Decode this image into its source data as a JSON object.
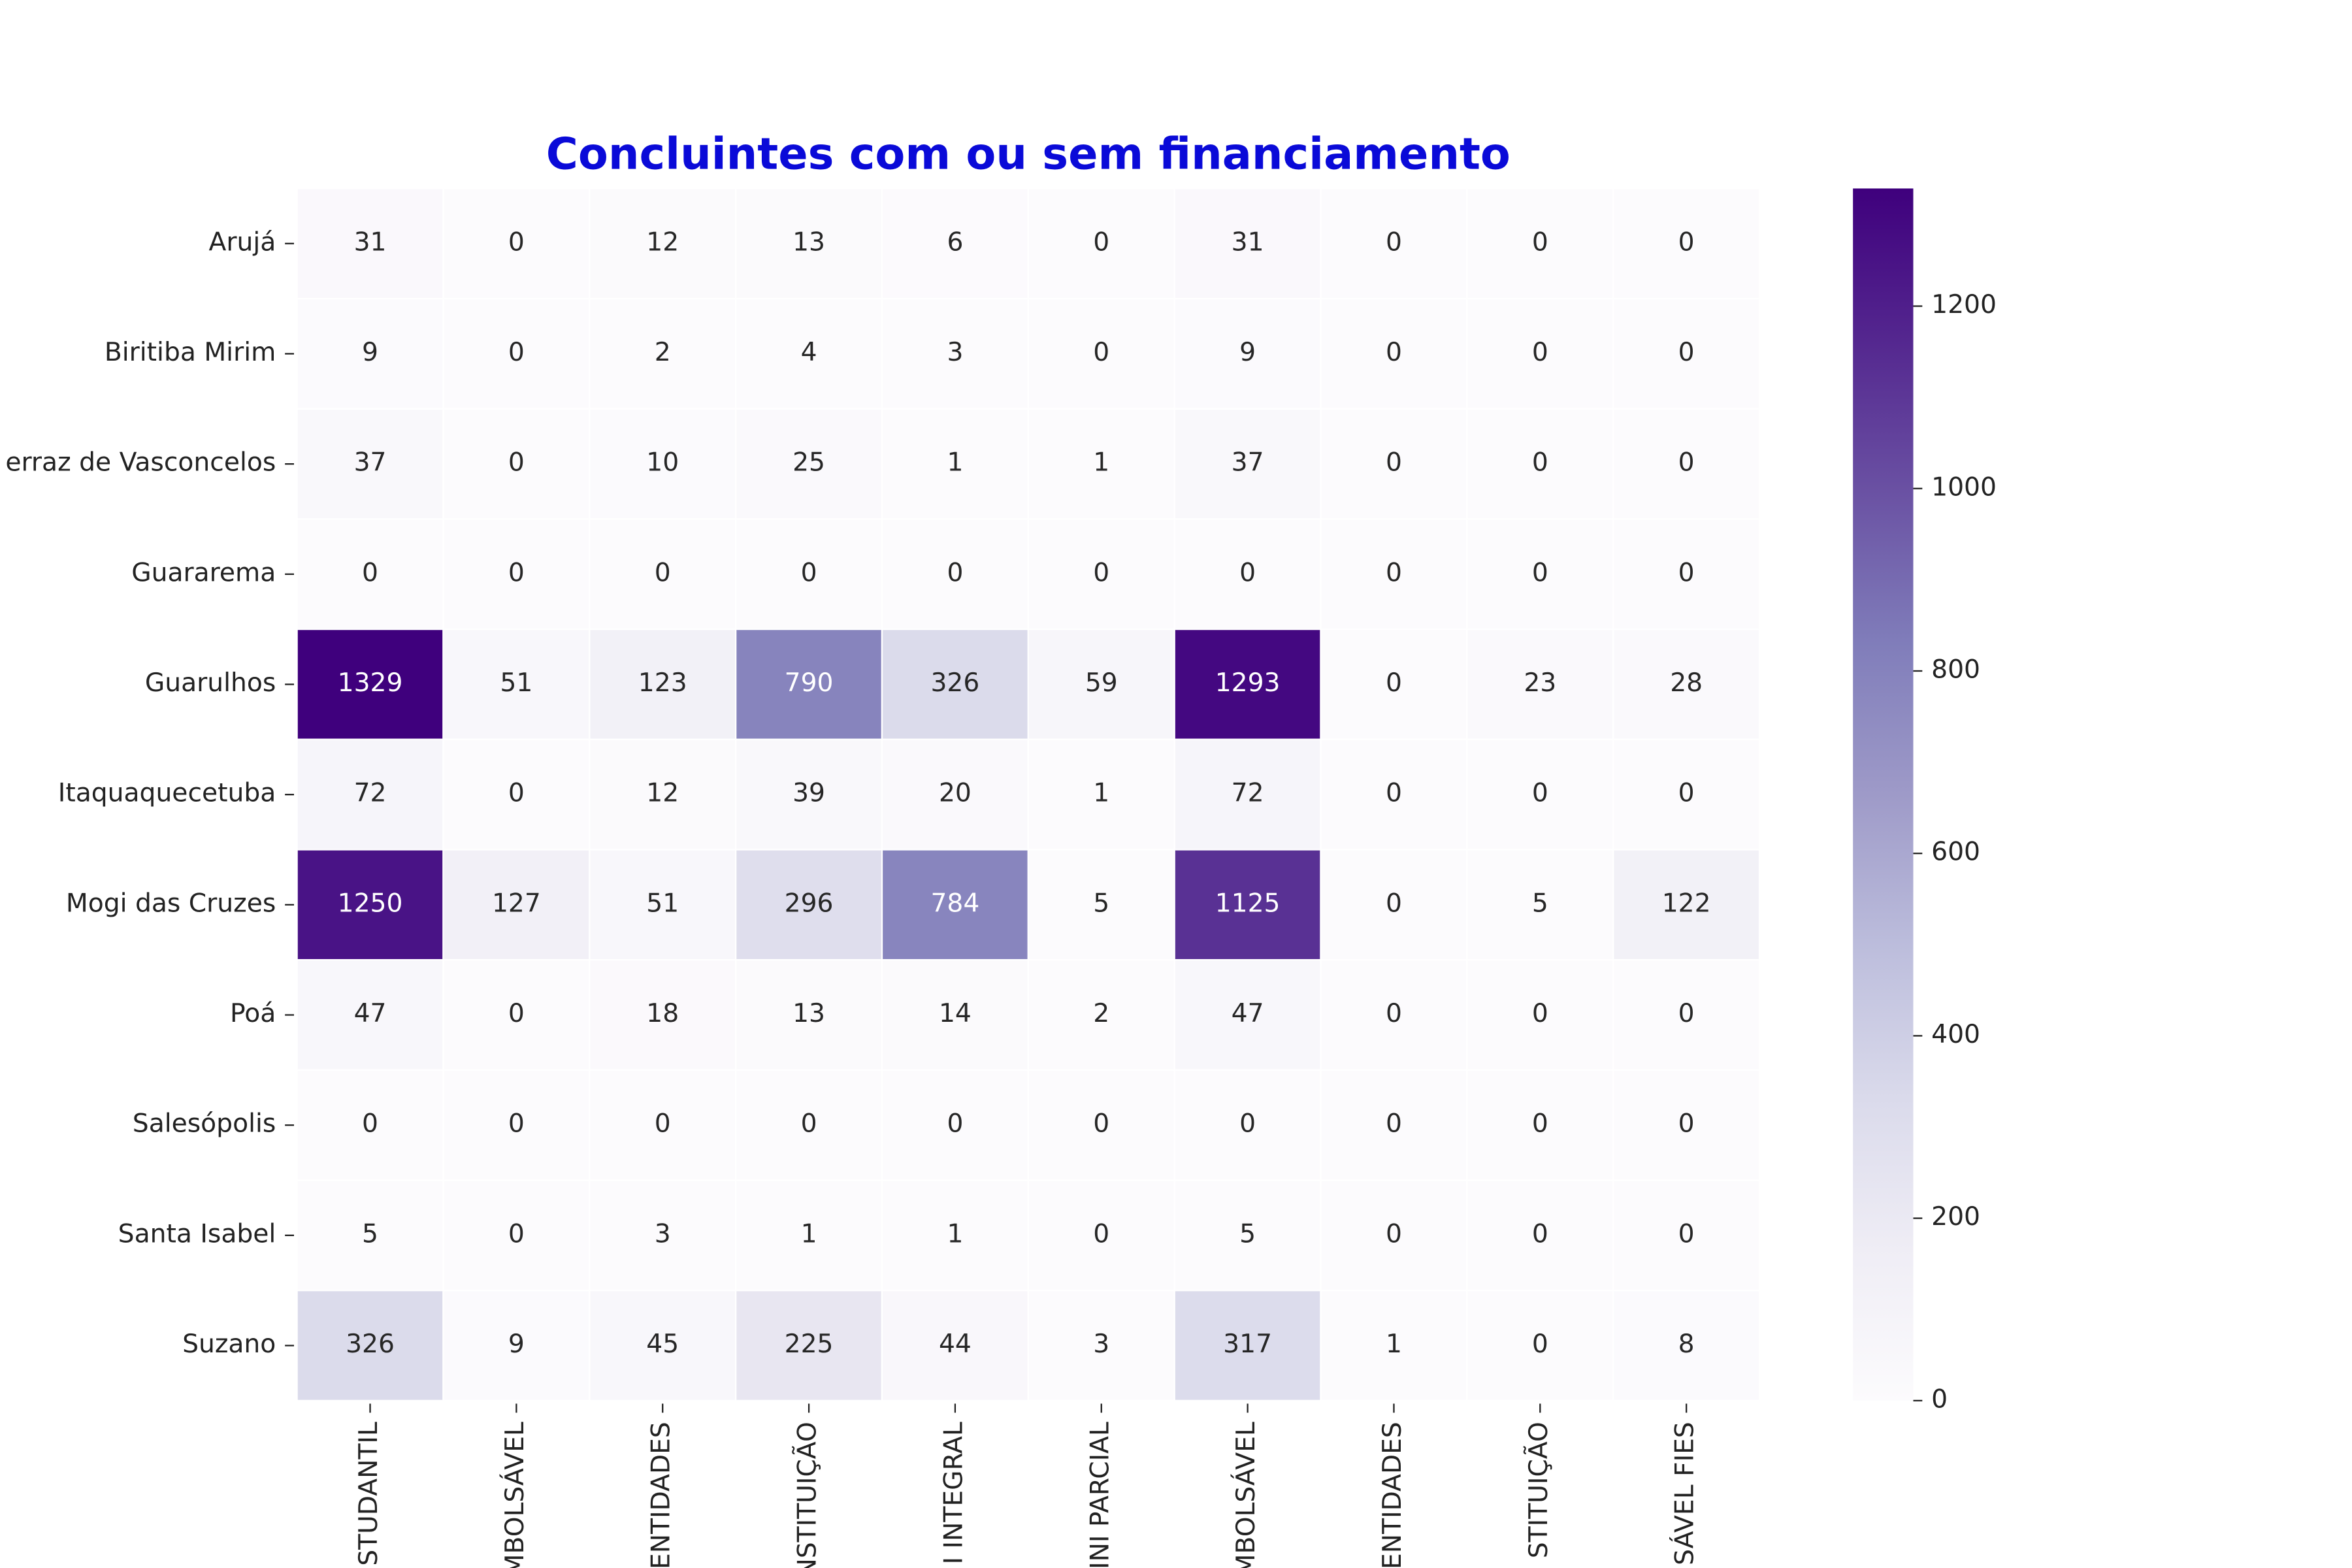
{
  "chart_data": {
    "type": "heatmap",
    "title": "Concluintes com ou sem financiamento",
    "x_categories": [
      "STUDANTIL",
      "MBOLSÁVEL",
      "ENTIDADES",
      "NSTITUIÇÃO",
      "I INTEGRAL",
      "INI PARCIAL",
      "MBOLSÁVEL",
      "ENTIDADES",
      "STITUIÇÃO",
      "SÁVEL FIES"
    ],
    "y_categories": [
      "Arujá",
      "Biritiba Mirim",
      "erraz de Vasconcelos",
      "Guararema",
      "Guarulhos",
      "Itaquaquecetuba",
      "Mogi das Cruzes",
      "Poá",
      "Salesópolis",
      "Santa Isabel",
      "Suzano"
    ],
    "values": [
      [
        31,
        0,
        12,
        13,
        6,
        0,
        31,
        0,
        0,
        0
      ],
      [
        9,
        0,
        2,
        4,
        3,
        0,
        9,
        0,
        0,
        0
      ],
      [
        37,
        0,
        10,
        25,
        1,
        1,
        37,
        0,
        0,
        0
      ],
      [
        0,
        0,
        0,
        0,
        0,
        0,
        0,
        0,
        0,
        0
      ],
      [
        1329,
        51,
        123,
        790,
        326,
        59,
        1293,
        0,
        23,
        28
      ],
      [
        72,
        0,
        12,
        39,
        20,
        1,
        72,
        0,
        0,
        0
      ],
      [
        1250,
        127,
        51,
        296,
        784,
        5,
        1125,
        0,
        5,
        122
      ],
      [
        47,
        0,
        18,
        13,
        14,
        2,
        47,
        0,
        0,
        0
      ],
      [
        0,
        0,
        0,
        0,
        0,
        0,
        0,
        0,
        0,
        0
      ],
      [
        5,
        0,
        3,
        1,
        1,
        0,
        5,
        0,
        0,
        0
      ],
      [
        326,
        9,
        45,
        225,
        44,
        3,
        317,
        1,
        0,
        8
      ]
    ],
    "zlim": [
      0,
      1329
    ],
    "zticks": [
      0,
      200,
      400,
      600,
      800,
      1000,
      1200
    ],
    "colormap": [
      "#fcfbfd",
      "#efedf5",
      "#dadaeb",
      "#bcbddc",
      "#9e9ac8",
      "#807dba",
      "#6a51a3",
      "#54278f",
      "#3f007d"
    ]
  }
}
